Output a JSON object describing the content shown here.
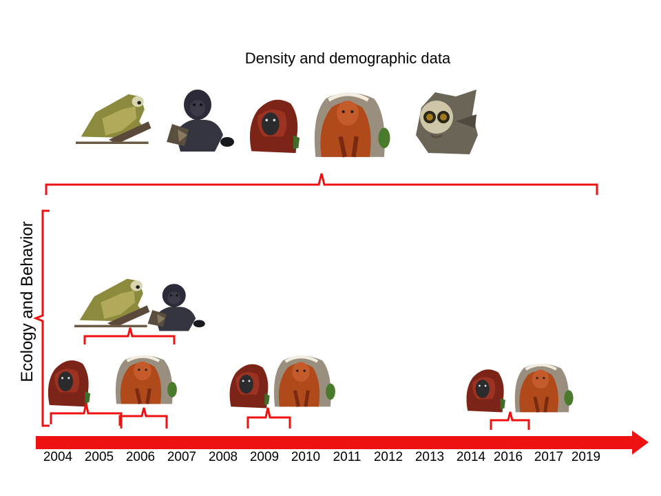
{
  "title": "Density and demographic data",
  "y_label": "Ecology and Behavior",
  "timeline": {
    "years": [
      "2004",
      "2005",
      "2006",
      "2007",
      "2008",
      "2009",
      "2010",
      "2011",
      "2012",
      "2013",
      "2014",
      "2016",
      "2017",
      "2019"
    ]
  },
  "species_icons": [
    "squirrel-monkey",
    "capuchin-monkey",
    "red-howler-monkey",
    "uakari-monkey",
    "night-monkey"
  ],
  "colors": {
    "accent": "#ee1111"
  }
}
